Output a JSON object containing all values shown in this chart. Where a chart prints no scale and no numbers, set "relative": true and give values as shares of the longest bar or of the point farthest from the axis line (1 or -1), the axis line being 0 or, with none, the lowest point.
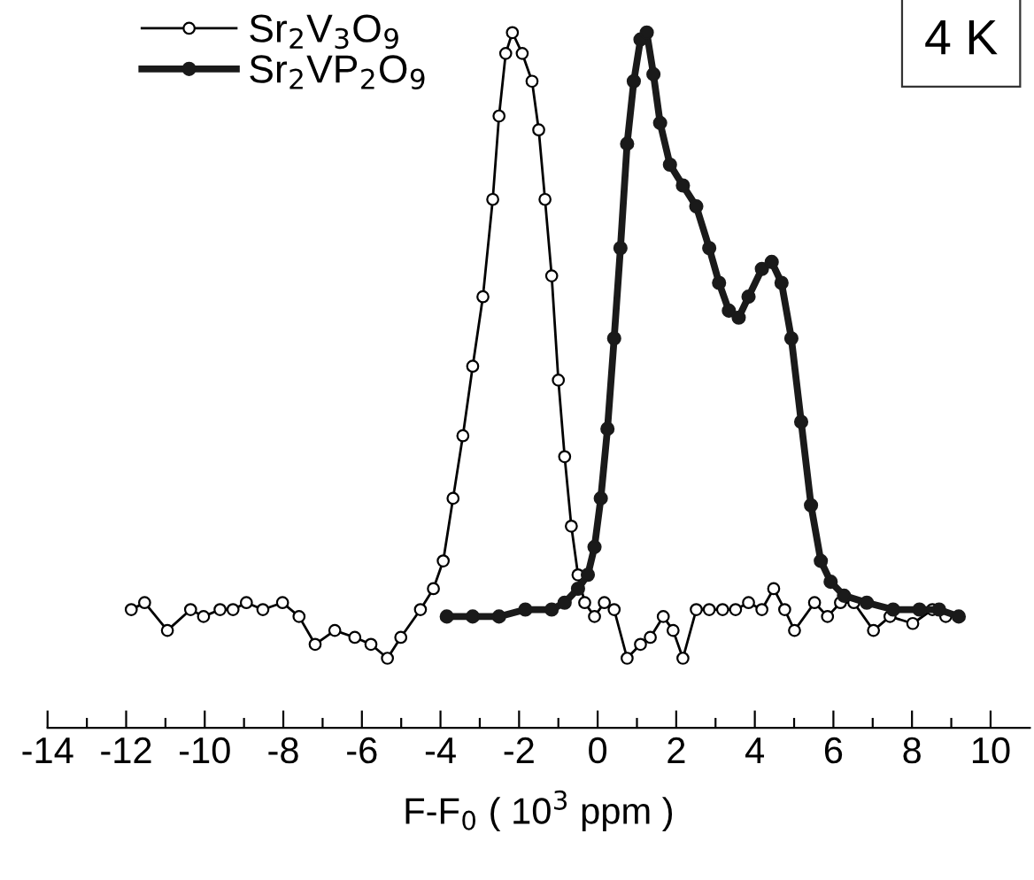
{
  "chart_data": {
    "type": "line",
    "relative": true,
    "xlabel": "F-F$_{0}$ ( 10$^{3}$ ppm )",
    "annotations": [
      "4 K"
    ],
    "xlim": [
      -14,
      11
    ],
    "xticks": [
      {
        "value": -14,
        "label": "-14"
      },
      {
        "value": -13,
        "label": null
      },
      {
        "value": -12,
        "label": "-12"
      },
      {
        "value": -11,
        "label": null
      },
      {
        "value": -10,
        "label": "-10"
      },
      {
        "value": -9,
        "label": null
      },
      {
        "value": -8,
        "label": "-8"
      },
      {
        "value": -7,
        "label": null
      },
      {
        "value": -6,
        "label": "-6"
      },
      {
        "value": -5,
        "label": null
      },
      {
        "value": -4,
        "label": "-4"
      },
      {
        "value": -3,
        "label": null
      },
      {
        "value": -2,
        "label": "-2"
      },
      {
        "value": -1,
        "label": null
      },
      0,
      {
        "value": 1,
        "label": null
      },
      2,
      {
        "value": 3,
        "label": null
      },
      4,
      {
        "value": 5,
        "label": null
      },
      6,
      {
        "value": 7,
        "label": null
      },
      8,
      {
        "value": 9,
        "label": null
      },
      10
    ],
    "tick_labels": "x",
    "grid": false,
    "legend": "top left",
    "marker": "circle",
    "line_style": "solid",
    "series": [
      {
        "name": "Sr$_{2}$V$_{3}$O$_{9}$",
        "color": "#000000",
        "x": [
          -11.87,
          -11.53,
          -10.95,
          -10.36,
          -10.03,
          -9.61,
          -9.28,
          -8.94,
          -8.52,
          -8.02,
          -7.6,
          -7.19,
          -6.69,
          -6.18,
          -5.77,
          -5.35,
          -5.01,
          -4.51,
          -4.18,
          -3.93,
          -3.68,
          -3.43,
          -3.18,
          -2.92,
          -2.67,
          -2.51,
          -2.34,
          -2.17,
          -1.92,
          -1.67,
          -1.5,
          -1.34,
          -1.17,
          -1.0,
          -0.84,
          -0.67,
          -0.5,
          -0.33,
          -0.08,
          0.17,
          0.42,
          0.75,
          1.09,
          1.34,
          1.67,
          1.92,
          2.17,
          2.51,
          2.84,
          3.18,
          3.51,
          3.84,
          4.18,
          4.48,
          4.76,
          5.01,
          5.52,
          5.85,
          6.18,
          6.52,
          7.02,
          7.44,
          8.02,
          8.52,
          8.86
        ],
        "values": [
          0.17,
          0.18,
          0.14,
          0.17,
          0.16,
          0.17,
          0.17,
          0.18,
          0.17,
          0.18,
          0.16,
          0.12,
          0.14,
          0.13,
          0.12,
          0.1,
          0.13,
          0.17,
          0.2,
          0.24,
          0.33,
          0.42,
          0.52,
          0.62,
          0.76,
          0.88,
          0.97,
          1.0,
          0.97,
          0.93,
          0.86,
          0.76,
          0.65,
          0.5,
          0.39,
          0.29,
          0.22,
          0.18,
          0.16,
          0.18,
          0.17,
          0.1,
          0.12,
          0.13,
          0.16,
          0.14,
          0.1,
          0.17,
          0.17,
          0.17,
          0.17,
          0.18,
          0.17,
          0.2,
          0.17,
          0.14,
          0.18,
          0.16,
          0.18,
          0.18,
          0.14,
          0.16,
          0.15,
          0.17,
          0.16
        ]
      },
      {
        "name": "Sr$_{2}$VP$_{2}$O$_{9}$",
        "color": "#1a1a1a",
        "x": [
          -3.84,
          -3.18,
          -2.51,
          -1.84,
          -1.17,
          -0.84,
          -0.5,
          -0.25,
          -0.08,
          0.08,
          0.25,
          0.42,
          0.58,
          0.75,
          0.92,
          1.09,
          1.25,
          1.42,
          1.59,
          1.84,
          2.17,
          2.51,
          2.84,
          3.09,
          3.34,
          3.59,
          3.84,
          4.18,
          4.43,
          4.68,
          4.93,
          5.18,
          5.43,
          5.68,
          5.93,
          6.27,
          6.85,
          7.52,
          8.19,
          8.69,
          9.19
        ],
        "values": [
          0.16,
          0.16,
          0.16,
          0.17,
          0.17,
          0.18,
          0.2,
          0.22,
          0.26,
          0.33,
          0.43,
          0.56,
          0.69,
          0.84,
          0.93,
          0.99,
          1.0,
          0.94,
          0.87,
          0.81,
          0.78,
          0.75,
          0.69,
          0.64,
          0.6,
          0.59,
          0.62,
          0.66,
          0.67,
          0.64,
          0.56,
          0.44,
          0.32,
          0.24,
          0.21,
          0.19,
          0.18,
          0.17,
          0.17,
          0.17,
          0.16
        ]
      }
    ]
  }
}
